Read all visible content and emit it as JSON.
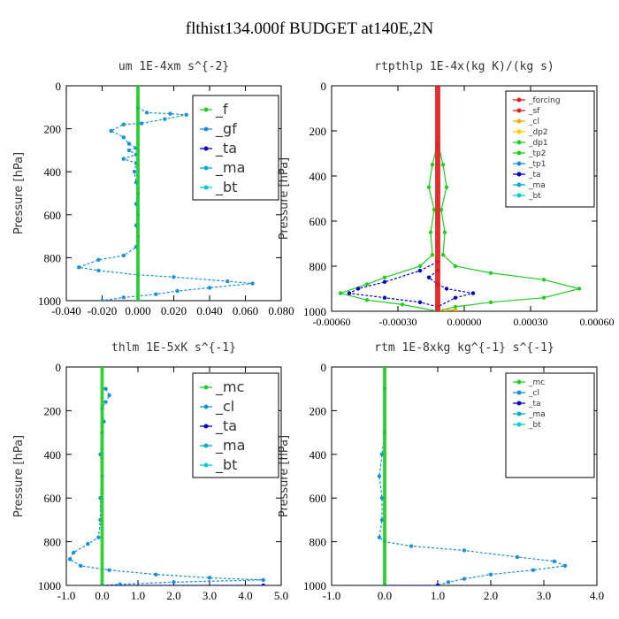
{
  "title": "flthist134.000f  BUDGET at140E,2N",
  "chart_data": [
    {
      "type": "line",
      "title": "um  1E-4xm s^{-2}",
      "ylabel": "Pressure [hPa]",
      "xlim": [
        -0.04,
        0.08
      ],
      "ylim": [
        1000,
        0
      ],
      "xticks": [
        "-0.040",
        "-0.020",
        "0.000",
        "0.020",
        "0.040",
        "0.060",
        "0.080"
      ],
      "yticks": [
        "0",
        "200",
        "400",
        "600",
        "800",
        "1000"
      ],
      "legend": [
        "_f",
        "_gf",
        "_ta",
        "_ma",
        "_bt"
      ],
      "series": [
        {
          "name": "_f",
          "color": "#22cc22",
          "points": [
            [
              0.0,
              0
            ],
            [
              0.0,
              1000
            ]
          ]
        },
        {
          "name": "_gf",
          "color": "#1a8fdc",
          "points": [
            [
              0.0,
              100
            ],
            [
              0.005,
              125
            ],
            [
              0.018,
              130
            ],
            [
              0.027,
              135
            ],
            [
              0.015,
              155
            ],
            [
              0.002,
              175
            ],
            [
              -0.008,
              180
            ],
            [
              -0.015,
              210
            ],
            [
              -0.008,
              240
            ],
            [
              -0.005,
              270
            ],
            [
              -0.001,
              290
            ],
            [
              -0.005,
              300
            ],
            [
              -0.001,
              320
            ],
            [
              -0.008,
              340
            ],
            [
              -0.001,
              360
            ],
            [
              -0.002,
              400
            ],
            [
              -0.001,
              450
            ],
            [
              0.0,
              500
            ],
            [
              -0.001,
              550
            ],
            [
              0.0,
              600
            ],
            [
              -0.001,
              650
            ],
            [
              0.0,
              700
            ],
            [
              -0.001,
              750
            ],
            [
              -0.008,
              790
            ],
            [
              -0.022,
              810
            ],
            [
              -0.033,
              845
            ],
            [
              -0.022,
              860
            ],
            [
              0.0,
              880
            ],
            [
              0.02,
              890
            ],
            [
              0.05,
              910
            ],
            [
              0.064,
              920
            ],
            [
              0.04,
              940
            ],
            [
              0.022,
              955
            ],
            [
              0.01,
              970
            ],
            [
              -0.008,
              985
            ],
            [
              -0.02,
              1000
            ]
          ]
        },
        {
          "name": "_ta",
          "color": "#0000cc",
          "points": [
            [
              0.0,
              0
            ],
            [
              0.0,
              1000
            ]
          ]
        },
        {
          "name": "_ma",
          "color": "#00aacc",
          "points": [
            [
              0.0,
              0
            ],
            [
              0.0,
              1000
            ]
          ]
        },
        {
          "name": "_bt",
          "color": "#00cccc",
          "points": [
            [
              0.0,
              0
            ],
            [
              0.0,
              1000
            ]
          ]
        }
      ]
    },
    {
      "type": "line",
      "title": "rtpthlp  1E-4x(kg K)/(kg s)",
      "ylabel": "Pressure [hPa]",
      "xlim": [
        -0.0006,
        0.0009
      ],
      "ylim": [
        1000,
        0
      ],
      "xticks": [
        "-0.00060",
        "-0.00030",
        "0.00000",
        "0.00030",
        "0.00060"
      ],
      "yticks": [
        "0",
        "200",
        "400",
        "600",
        "800",
        "1000"
      ],
      "legend": [
        "_forcing",
        "_sf",
        "_cl",
        "_dp2",
        "_dp1",
        "_tp2",
        "_tp1",
        "_ta",
        "_ma",
        "_bt"
      ],
      "series": [
        {
          "name": "_tp2",
          "color": "#22cc22",
          "points": [
            [
              0.0,
              250
            ],
            [
              3e-05,
              350
            ],
            [
              5e-05,
              450
            ],
            [
              2e-05,
              550
            ],
            [
              4e-05,
              650
            ],
            [
              3e-05,
              750
            ],
            [
              0.0001,
              800
            ],
            [
              0.0003,
              830
            ],
            [
              0.0006,
              860
            ],
            [
              0.0008,
              900
            ],
            [
              0.0006,
              940
            ],
            [
              0.0003,
              960
            ],
            [
              0.0001,
              980
            ],
            [
              0.0,
              1000
            ]
          ]
        },
        {
          "name": "_dp1",
          "color": "#22cc22",
          "points": [
            [
              0.0,
              250
            ],
            [
              -3e-05,
              350
            ],
            [
              -5e-05,
              450
            ],
            [
              -2e-05,
              550
            ],
            [
              -4e-05,
              650
            ],
            [
              -3e-05,
              750
            ],
            [
              -0.0001,
              800
            ],
            [
              -0.0003,
              850
            ],
            [
              -0.0004,
              880
            ],
            [
              -0.00055,
              920
            ],
            [
              -0.0004,
              950
            ],
            [
              -0.0002,
              970
            ],
            [
              0.0,
              1000
            ]
          ]
        },
        {
          "name": "_ta",
          "color": "#0000cc",
          "points": [
            [
              0.0,
              780
            ],
            [
              -0.0001,
              820
            ],
            [
              -0.0003,
              870
            ],
            [
              -0.00045,
              900
            ],
            [
              -0.0005,
              920
            ],
            [
              -0.0003,
              940
            ],
            [
              -0.0001,
              960
            ],
            [
              0.0,
              980
            ],
            [
              0.0001,
              940
            ],
            [
              0.0002,
              920
            ],
            [
              5e-05,
              900
            ],
            [
              0.0,
              880
            ],
            [
              -5e-05,
              850
            ],
            [
              0.0,
              820
            ]
          ]
        },
        {
          "name": "_forcing",
          "color": "#dd2222",
          "points": [
            [
              0.0,
              0
            ],
            [
              0.0,
              1000
            ]
          ]
        },
        {
          "name": "_cl",
          "color": "#ffaa00",
          "points": [
            [
              0.0,
              990
            ],
            [
              0.0001,
              995
            ],
            [
              0.0,
              1000
            ]
          ]
        }
      ]
    },
    {
      "type": "line",
      "title": "thlm  1E-5xK s^{-1}",
      "ylabel": "Pressure [hPa]",
      "xlim": [
        -1.0,
        5.0
      ],
      "ylim": [
        1000,
        0
      ],
      "xticks": [
        "-1.0",
        "0.0",
        "1.0",
        "2.0",
        "3.0",
        "4.0",
        "5.0"
      ],
      "yticks": [
        "0",
        "200",
        "400",
        "600",
        "800",
        "1000"
      ],
      "legend": [
        "_mc",
        "_cl",
        "_ta",
        "_ma",
        "_bt"
      ],
      "series": [
        {
          "name": "_mc",
          "color": "#22cc22",
          "points": [
            [
              0.0,
              0
            ],
            [
              0.0,
              1000
            ]
          ]
        },
        {
          "name": "_cl",
          "color": "#1a8fdc",
          "points": [
            [
              0.1,
              100
            ],
            [
              0.2,
              130
            ],
            [
              0.1,
              160
            ],
            [
              0.0,
              190
            ],
            [
              0.05,
              250
            ],
            [
              0.0,
              300
            ],
            [
              -0.05,
              400
            ],
            [
              0.0,
              500
            ],
            [
              -0.05,
              600
            ],
            [
              -0.05,
              700
            ],
            [
              -0.1,
              780
            ],
            [
              -0.4,
              810
            ],
            [
              -0.8,
              850
            ],
            [
              -0.9,
              880
            ],
            [
              -0.6,
              910
            ],
            [
              0.2,
              930
            ],
            [
              1.5,
              950
            ],
            [
              3.0,
              965
            ],
            [
              4.5,
              975
            ],
            [
              2.0,
              985
            ],
            [
              0.5,
              995
            ],
            [
              0.0,
              1000
            ]
          ]
        },
        {
          "name": "_ta",
          "color": "#0000cc",
          "points": [
            [
              0.0,
              1000
            ],
            [
              4.5,
              1000
            ]
          ]
        }
      ]
    },
    {
      "type": "line",
      "title": "rtm  1E-8xkg kg^{-1} s^{-1}",
      "ylabel": "Pressure [hPa]",
      "xlim": [
        -1.0,
        4.0
      ],
      "ylim": [
        1000,
        0
      ],
      "xticks": [
        "-1.0",
        "0.0",
        "1.0",
        "2.0",
        "3.0",
        "4.0"
      ],
      "yticks": [
        "0",
        "200",
        "400",
        "600",
        "800",
        "1000"
      ],
      "legend": [
        "_mc",
        "_cl",
        "_ta",
        "_ma",
        "_bt"
      ],
      "series": [
        {
          "name": "_mc",
          "color": "#22cc22",
          "points": [
            [
              0.0,
              0
            ],
            [
              0.0,
              1000
            ]
          ]
        },
        {
          "name": "_cl",
          "color": "#1a8fdc",
          "points": [
            [
              0.0,
              100
            ],
            [
              0.0,
              300
            ],
            [
              -0.05,
              400
            ],
            [
              -0.1,
              500
            ],
            [
              -0.05,
              600
            ],
            [
              -0.05,
              700
            ],
            [
              -0.1,
              780
            ],
            [
              0.0,
              800
            ],
            [
              0.5,
              820
            ],
            [
              1.5,
              840
            ],
            [
              2.5,
              870
            ],
            [
              3.2,
              890
            ],
            [
              3.4,
              910
            ],
            [
              2.8,
              930
            ],
            [
              2.0,
              950
            ],
            [
              1.5,
              970
            ],
            [
              1.2,
              985
            ],
            [
              1.0,
              1000
            ]
          ]
        },
        {
          "name": "_ta",
          "color": "#0000cc",
          "points": [
            [
              0.0,
              1000
            ],
            [
              1.0,
              1000
            ]
          ]
        }
      ]
    }
  ]
}
